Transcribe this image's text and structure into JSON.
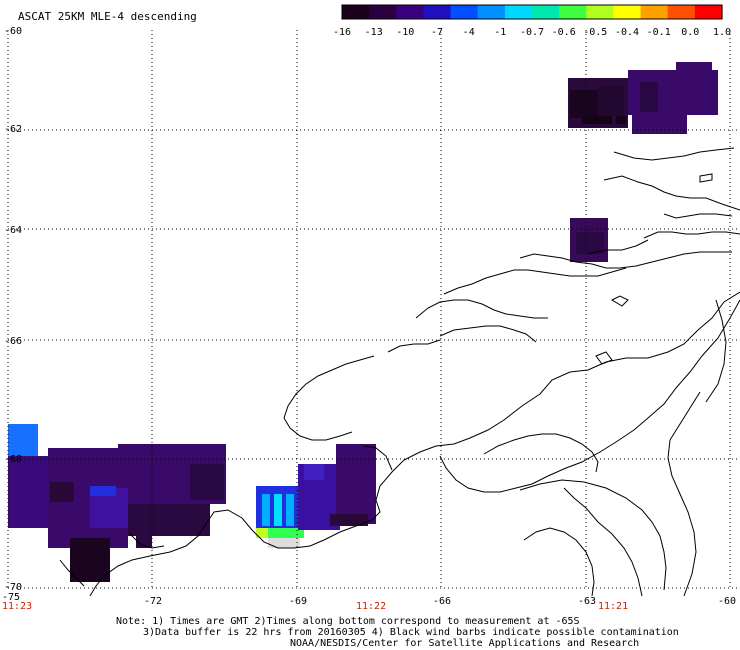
{
  "title": "ASCAT 25KM MLE-4 descending",
  "colorbar": {
    "labels": [
      "-16",
      "-13",
      "-10",
      "-7",
      "-4",
      "-1",
      "-0.7",
      "-0.6",
      "-0.5",
      "-0.4",
      "-0.1",
      "0.0",
      "1.0"
    ],
    "colors": [
      "#1a001a",
      "#2a0040",
      "#3a0080",
      "#2010c0",
      "#0050ff",
      "#0090ff",
      "#00d8ff",
      "#00e8b0",
      "#40ff40",
      "#b0ff20",
      "#ffff00",
      "#ffa000",
      "#ff5000",
      "#ff0000"
    ]
  },
  "axes": {
    "lon_labels": [
      "-75",
      "-72",
      "-69",
      "-66",
      "-63",
      "-60"
    ],
    "lat_labels": [
      "-60",
      "-62",
      "-64",
      "-66",
      "-68",
      "-70"
    ]
  },
  "times": [
    "11:23",
    "11:22",
    "11:21"
  ],
  "notes": {
    "line1": "Note: 1) Times are GMT 2)Times along bottom correspond to measurement at -65S",
    "line2": "3)Data buffer is 22 hrs from 20160305 4) Black wind barbs indicate possible contamination",
    "line3": "NOAA/NESDIS/Center for Satellite Applications and Research"
  }
}
